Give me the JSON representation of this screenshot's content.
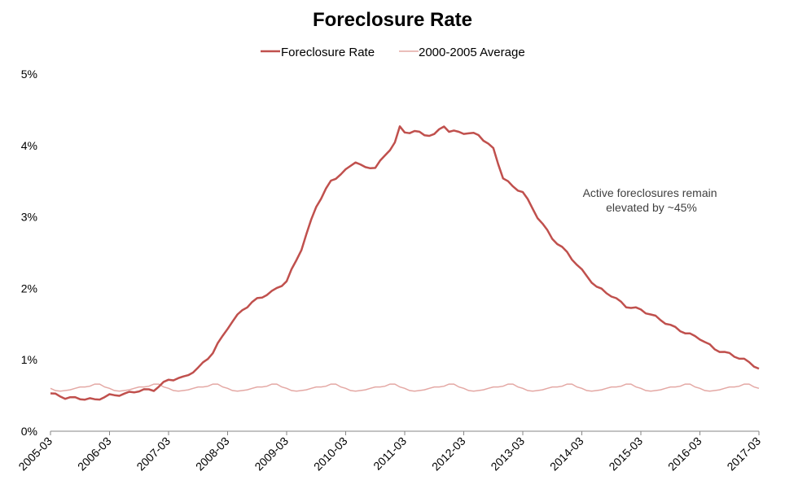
{
  "chart_data": {
    "type": "line",
    "title": "Foreclosure Rate",
    "xlabel": "",
    "ylabel": "",
    "ylim": [
      0,
      5
    ],
    "y_ticks": [
      "0%",
      "1%",
      "2%",
      "3%",
      "4%",
      "5%"
    ],
    "x_ticks": [
      "2005-03",
      "2006-03",
      "2007-03",
      "2008-03",
      "2009-03",
      "2010-03",
      "2011-03",
      "2012-03",
      "2013-03",
      "2014-03",
      "2015-03",
      "2016-03",
      "2017-03"
    ],
    "x_start": "2005-03",
    "legend_position": "top-center",
    "grid": false,
    "annotation": [
      "Active foreclosures remain",
      "elevated by ~45%"
    ],
    "series": [
      {
        "name": "Foreclosure Rate",
        "color": "#c0504d",
        "keypoints": [
          [
            "2005-03",
            0.53
          ],
          [
            "2005-06",
            0.47
          ],
          [
            "2005-09",
            0.46
          ],
          [
            "2005-12",
            0.44
          ],
          [
            "2006-03",
            0.5
          ],
          [
            "2006-06",
            0.52
          ],
          [
            "2006-09",
            0.57
          ],
          [
            "2006-12",
            0.58
          ],
          [
            "2007-03",
            0.72
          ],
          [
            "2007-06",
            0.75
          ],
          [
            "2007-09",
            0.88
          ],
          [
            "2007-12",
            1.1
          ],
          [
            "2008-03",
            1.45
          ],
          [
            "2008-06",
            1.7
          ],
          [
            "2008-09",
            1.85
          ],
          [
            "2008-12",
            1.95
          ],
          [
            "2009-03",
            2.1
          ],
          [
            "2009-06",
            2.55
          ],
          [
            "2009-09",
            3.15
          ],
          [
            "2009-12",
            3.5
          ],
          [
            "2010-03",
            3.65
          ],
          [
            "2010-05",
            3.78
          ],
          [
            "2010-07",
            3.68
          ],
          [
            "2010-09",
            3.7
          ],
          [
            "2010-11",
            3.85
          ],
          [
            "2011-01",
            4.05
          ],
          [
            "2011-02",
            4.25
          ],
          [
            "2011-03",
            4.18
          ],
          [
            "2011-05",
            4.2
          ],
          [
            "2011-07",
            4.15
          ],
          [
            "2011-09",
            4.15
          ],
          [
            "2011-11",
            4.28
          ],
          [
            "2011-12",
            4.2
          ],
          [
            "2012-03",
            4.18
          ],
          [
            "2012-06",
            4.15
          ],
          [
            "2012-09",
            3.95
          ],
          [
            "2012-11",
            3.55
          ],
          [
            "2013-01",
            3.42
          ],
          [
            "2013-03",
            3.35
          ],
          [
            "2013-06",
            3.0
          ],
          [
            "2013-09",
            2.7
          ],
          [
            "2013-12",
            2.5
          ],
          [
            "2014-03",
            2.25
          ],
          [
            "2014-06",
            2.02
          ],
          [
            "2014-09",
            1.9
          ],
          [
            "2014-12",
            1.75
          ],
          [
            "2015-03",
            1.7
          ],
          [
            "2015-06",
            1.6
          ],
          [
            "2015-09",
            1.48
          ],
          [
            "2015-12",
            1.38
          ],
          [
            "2016-03",
            1.3
          ],
          [
            "2016-06",
            1.15
          ],
          [
            "2016-09",
            1.08
          ],
          [
            "2016-12",
            1.0
          ],
          [
            "2017-03",
            0.88
          ]
        ]
      },
      {
        "name": "2000-2005 Average",
        "color": "#e4a8a4",
        "seasonal_by_month": [
          0.66,
          0.62,
          0.6,
          0.57,
          0.56,
          0.57,
          0.58,
          0.6,
          0.62,
          0.62,
          0.63,
          0.66
        ]
      }
    ]
  }
}
